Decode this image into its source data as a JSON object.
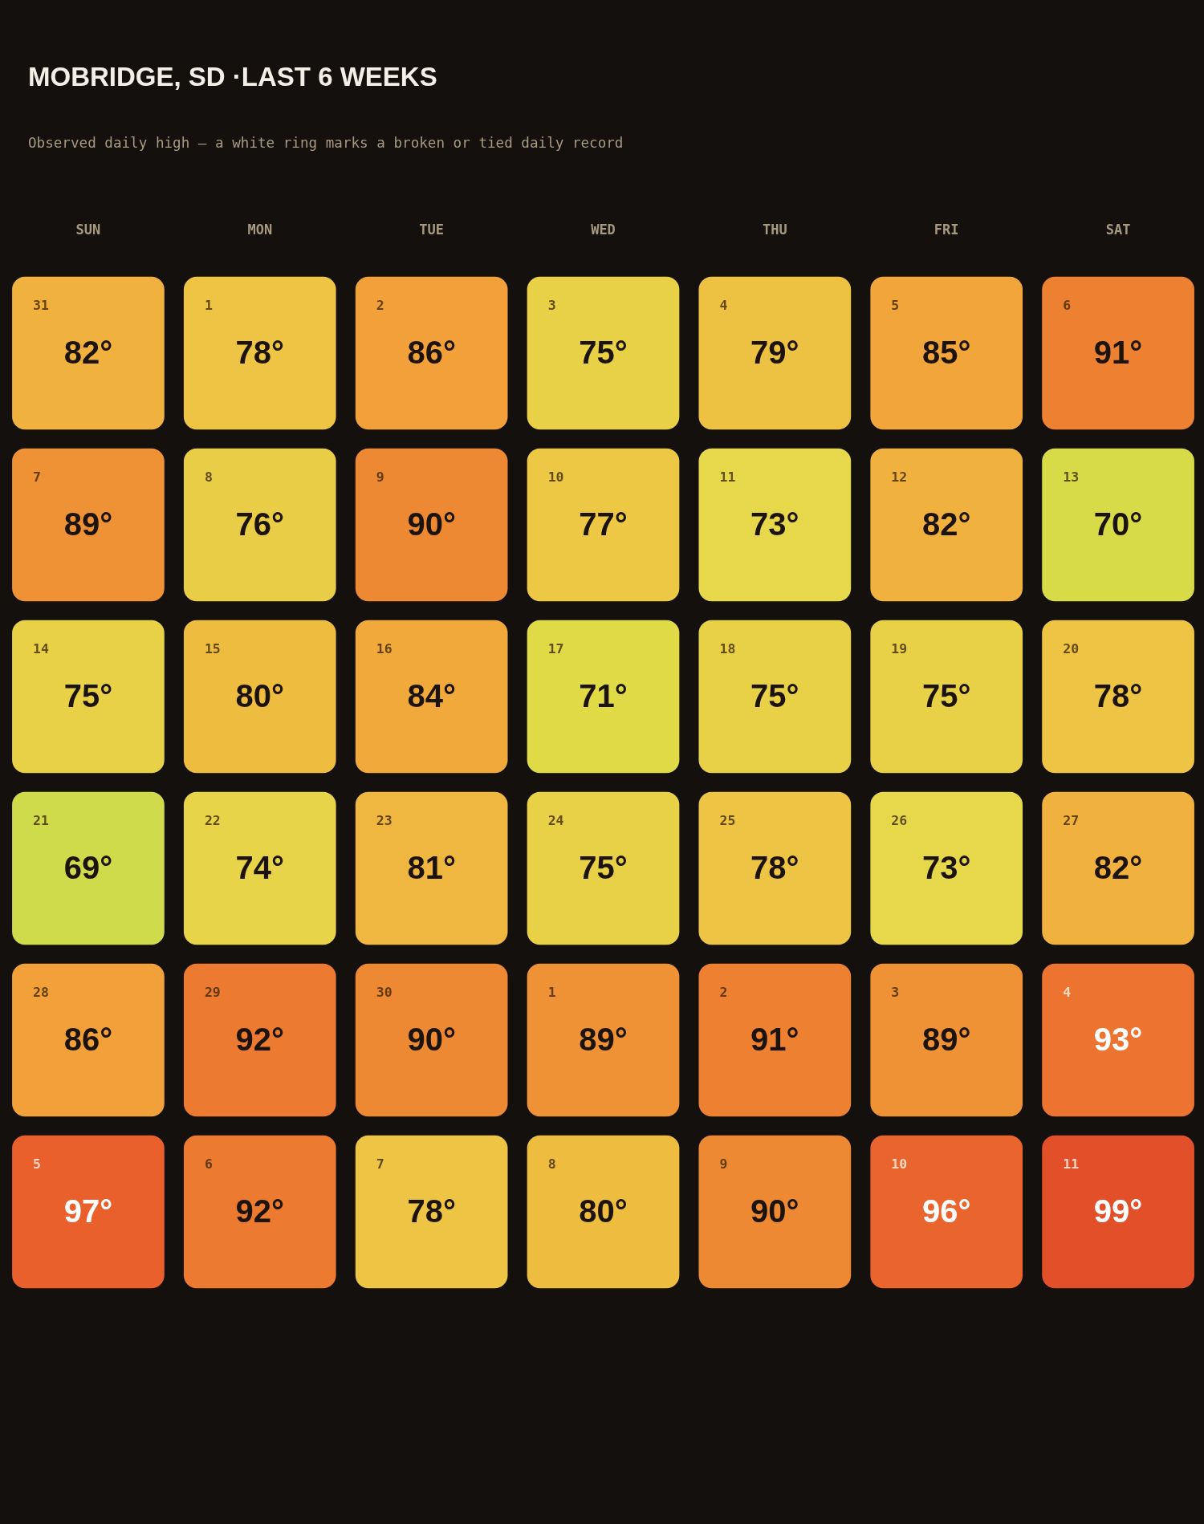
{
  "chart_data": {
    "type": "heatmap",
    "title": "MOBRIDGE, SD ·LAST 6 WEEKS",
    "subtitle": "Observed daily high — a white ring marks a broken or tied daily record",
    "categories": [
      "SUN",
      "MON",
      "TUE",
      "WED",
      "THU",
      "FRI",
      "SAT"
    ],
    "y_categories": [
      null,
      null,
      null,
      null,
      null,
      null
    ],
    "cells": [
      [
        82,
        78,
        86,
        75,
        79,
        85,
        91
      ],
      [
        89,
        76,
        90,
        77,
        73,
        82,
        70
      ],
      [
        75,
        80,
        84,
        71,
        75,
        75,
        78
      ],
      [
        69,
        74,
        81,
        75,
        78,
        73,
        82
      ],
      [
        86,
        92,
        90,
        89,
        91,
        89,
        93
      ],
      [
        97,
        92,
        78,
        80,
        90,
        96,
        99
      ]
    ],
    "cell_labels": [
      [
        "82°",
        "78°",
        "86°",
        "75°",
        "79°",
        "85°",
        "91°"
      ],
      [
        "89°",
        "76°",
        "90°",
        "77°",
        "73°",
        "82°",
        "70°"
      ],
      [
        "75°",
        "80°",
        "84°",
        "71°",
        "75°",
        "75°",
        "78°"
      ],
      [
        "69°",
        "74°",
        "81°",
        "75°",
        "78°",
        "73°",
        "82°"
      ],
      [
        "86°",
        "92°",
        "90°",
        "89°",
        "91°",
        "89°",
        "93°"
      ],
      [
        "97°",
        "92°",
        "78°",
        "80°",
        "90°",
        "96°",
        "99°"
      ]
    ],
    "annotations": [
      "31",
      "1",
      "2",
      "3",
      "4",
      "5",
      "6",
      "7",
      "8",
      "9",
      "10",
      "11",
      "12",
      "13",
      "14",
      "15",
      "16",
      "17",
      "18",
      "19",
      "20",
      "21",
      "22",
      "23",
      "24",
      "25",
      "26",
      "27",
      "28",
      "29",
      "30",
      "1",
      "2",
      "3",
      "4",
      "5",
      "6",
      "7",
      "8",
      "9",
      "10",
      "11"
    ]
  }
}
